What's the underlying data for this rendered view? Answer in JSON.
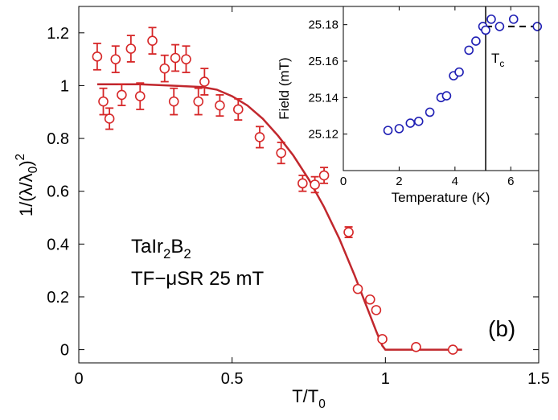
{
  "chart_data": [
    {
      "type": "scatter",
      "name": "main",
      "x_label": "T/T",
      "x_label_sub": "0",
      "y_label_prefix": "1/(λ/λ",
      "y_label_sub": "0",
      "y_label_suffix": ")",
      "y_label_sup": "2",
      "xlim": [
        0,
        1.5
      ],
      "ylim": [
        -0.05,
        1.3
      ],
      "x_ticks": [
        0,
        0.5,
        1,
        1.5
      ],
      "x_tick_labels": [
        "0",
        "0.5",
        "1",
        "1.5"
      ],
      "y_ticks": [
        0,
        0.2,
        0.4,
        0.6,
        0.8,
        1.0,
        1.2
      ],
      "y_tick_labels": [
        "0",
        "0.2",
        "0.4",
        "0.6",
        "0.8",
        "1",
        "1.2"
      ],
      "marker_color": "#d62728",
      "fit_color": "#c1272d",
      "series": [
        {
          "name": "data",
          "points": [
            {
              "x": 0.06,
              "y": 1.11,
              "err": 0.05
            },
            {
              "x": 0.08,
              "y": 0.94,
              "err": 0.05
            },
            {
              "x": 0.1,
              "y": 0.875,
              "err": 0.04
            },
            {
              "x": 0.12,
              "y": 1.1,
              "err": 0.05
            },
            {
              "x": 0.14,
              "y": 0.965,
              "err": 0.04
            },
            {
              "x": 0.17,
              "y": 1.14,
              "err": 0.05
            },
            {
              "x": 0.2,
              "y": 0.96,
              "err": 0.05
            },
            {
              "x": 0.24,
              "y": 1.17,
              "err": 0.05
            },
            {
              "x": 0.28,
              "y": 1.065,
              "err": 0.05
            },
            {
              "x": 0.31,
              "y": 0.94,
              "err": 0.05
            },
            {
              "x": 0.315,
              "y": 1.105,
              "err": 0.05
            },
            {
              "x": 0.35,
              "y": 1.1,
              "err": 0.05
            },
            {
              "x": 0.39,
              "y": 0.94,
              "err": 0.05
            },
            {
              "x": 0.41,
              "y": 1.015,
              "err": 0.05
            },
            {
              "x": 0.46,
              "y": 0.925,
              "err": 0.04
            },
            {
              "x": 0.52,
              "y": 0.91,
              "err": 0.04
            },
            {
              "x": 0.59,
              "y": 0.805,
              "err": 0.04
            },
            {
              "x": 0.66,
              "y": 0.745,
              "err": 0.04
            },
            {
              "x": 0.73,
              "y": 0.63,
              "err": 0.03
            },
            {
              "x": 0.77,
              "y": 0.625,
              "err": 0.03
            },
            {
              "x": 0.8,
              "y": 0.66,
              "err": 0.03
            },
            {
              "x": 0.88,
              "y": 0.445,
              "err": 0.02
            },
            {
              "x": 0.91,
              "y": 0.23,
              "err": 0
            },
            {
              "x": 0.95,
              "y": 0.19,
              "err": 0
            },
            {
              "x": 0.97,
              "y": 0.15,
              "err": 0
            },
            {
              "x": 0.99,
              "y": 0.04,
              "err": 0
            },
            {
              "x": 1.1,
              "y": 0.01,
              "err": 0
            },
            {
              "x": 1.22,
              "y": 0.0,
              "err": 0
            }
          ]
        },
        {
          "name": "fit",
          "x": [
            0.06,
            0.2,
            0.3,
            0.4,
            0.45,
            0.5,
            0.55,
            0.6,
            0.65,
            0.7,
            0.75,
            0.8,
            0.85,
            0.9,
            0.93,
            0.95,
            0.97,
            0.99,
            1.0,
            1.1,
            1.2,
            1.25
          ],
          "y": [
            1.005,
            1.005,
            1.0,
            0.995,
            0.985,
            0.96,
            0.925,
            0.875,
            0.81,
            0.735,
            0.645,
            0.54,
            0.42,
            0.28,
            0.19,
            0.13,
            0.07,
            0.015,
            0.0,
            0.0,
            0.0,
            0.0
          ]
        }
      ],
      "annotations": {
        "sample_prefix": "TaIr",
        "sample_sub1": "2",
        "sample_mid": "B",
        "sample_sub2": "2",
        "method": "TF−μSR 25 mT",
        "panel": "(b)"
      }
    },
    {
      "type": "scatter",
      "name": "inset",
      "x_label": "Temperature (K)",
      "y_label": "Field (mT)",
      "xlim": [
        0,
        7
      ],
      "ylim": [
        25.1,
        25.19
      ],
      "x_ticks": [
        0,
        2,
        4,
        6
      ],
      "x_tick_labels": [
        "0",
        "2",
        "4",
        "6"
      ],
      "y_ticks": [
        25.12,
        25.14,
        25.16,
        25.18
      ],
      "y_tick_labels": [
        "25.12",
        "25.14",
        "25.16",
        "25.18"
      ],
      "marker_color": "#1f1fb4",
      "tc_value": 5.1,
      "tc_label": "T",
      "tc_label_sub": "c",
      "points": [
        {
          "x": 1.6,
          "y": 25.122
        },
        {
          "x": 2.0,
          "y": 25.123
        },
        {
          "x": 2.4,
          "y": 25.126
        },
        {
          "x": 2.7,
          "y": 25.127
        },
        {
          "x": 3.1,
          "y": 25.132
        },
        {
          "x": 3.5,
          "y": 25.14
        },
        {
          "x": 3.7,
          "y": 25.141
        },
        {
          "x": 3.95,
          "y": 25.152
        },
        {
          "x": 4.15,
          "y": 25.154
        },
        {
          "x": 4.5,
          "y": 25.166
        },
        {
          "x": 4.75,
          "y": 25.171
        },
        {
          "x": 5.0,
          "y": 25.179
        },
        {
          "x": 5.1,
          "y": 25.177
        },
        {
          "x": 5.3,
          "y": 25.183
        },
        {
          "x": 5.6,
          "y": 25.179
        },
        {
          "x": 6.1,
          "y": 25.183
        },
        {
          "x": 6.95,
          "y": 25.179
        }
      ],
      "dashed_line": {
        "x": [
          5.1,
          6.95
        ],
        "y": [
          25.179,
          25.179
        ]
      }
    }
  ]
}
